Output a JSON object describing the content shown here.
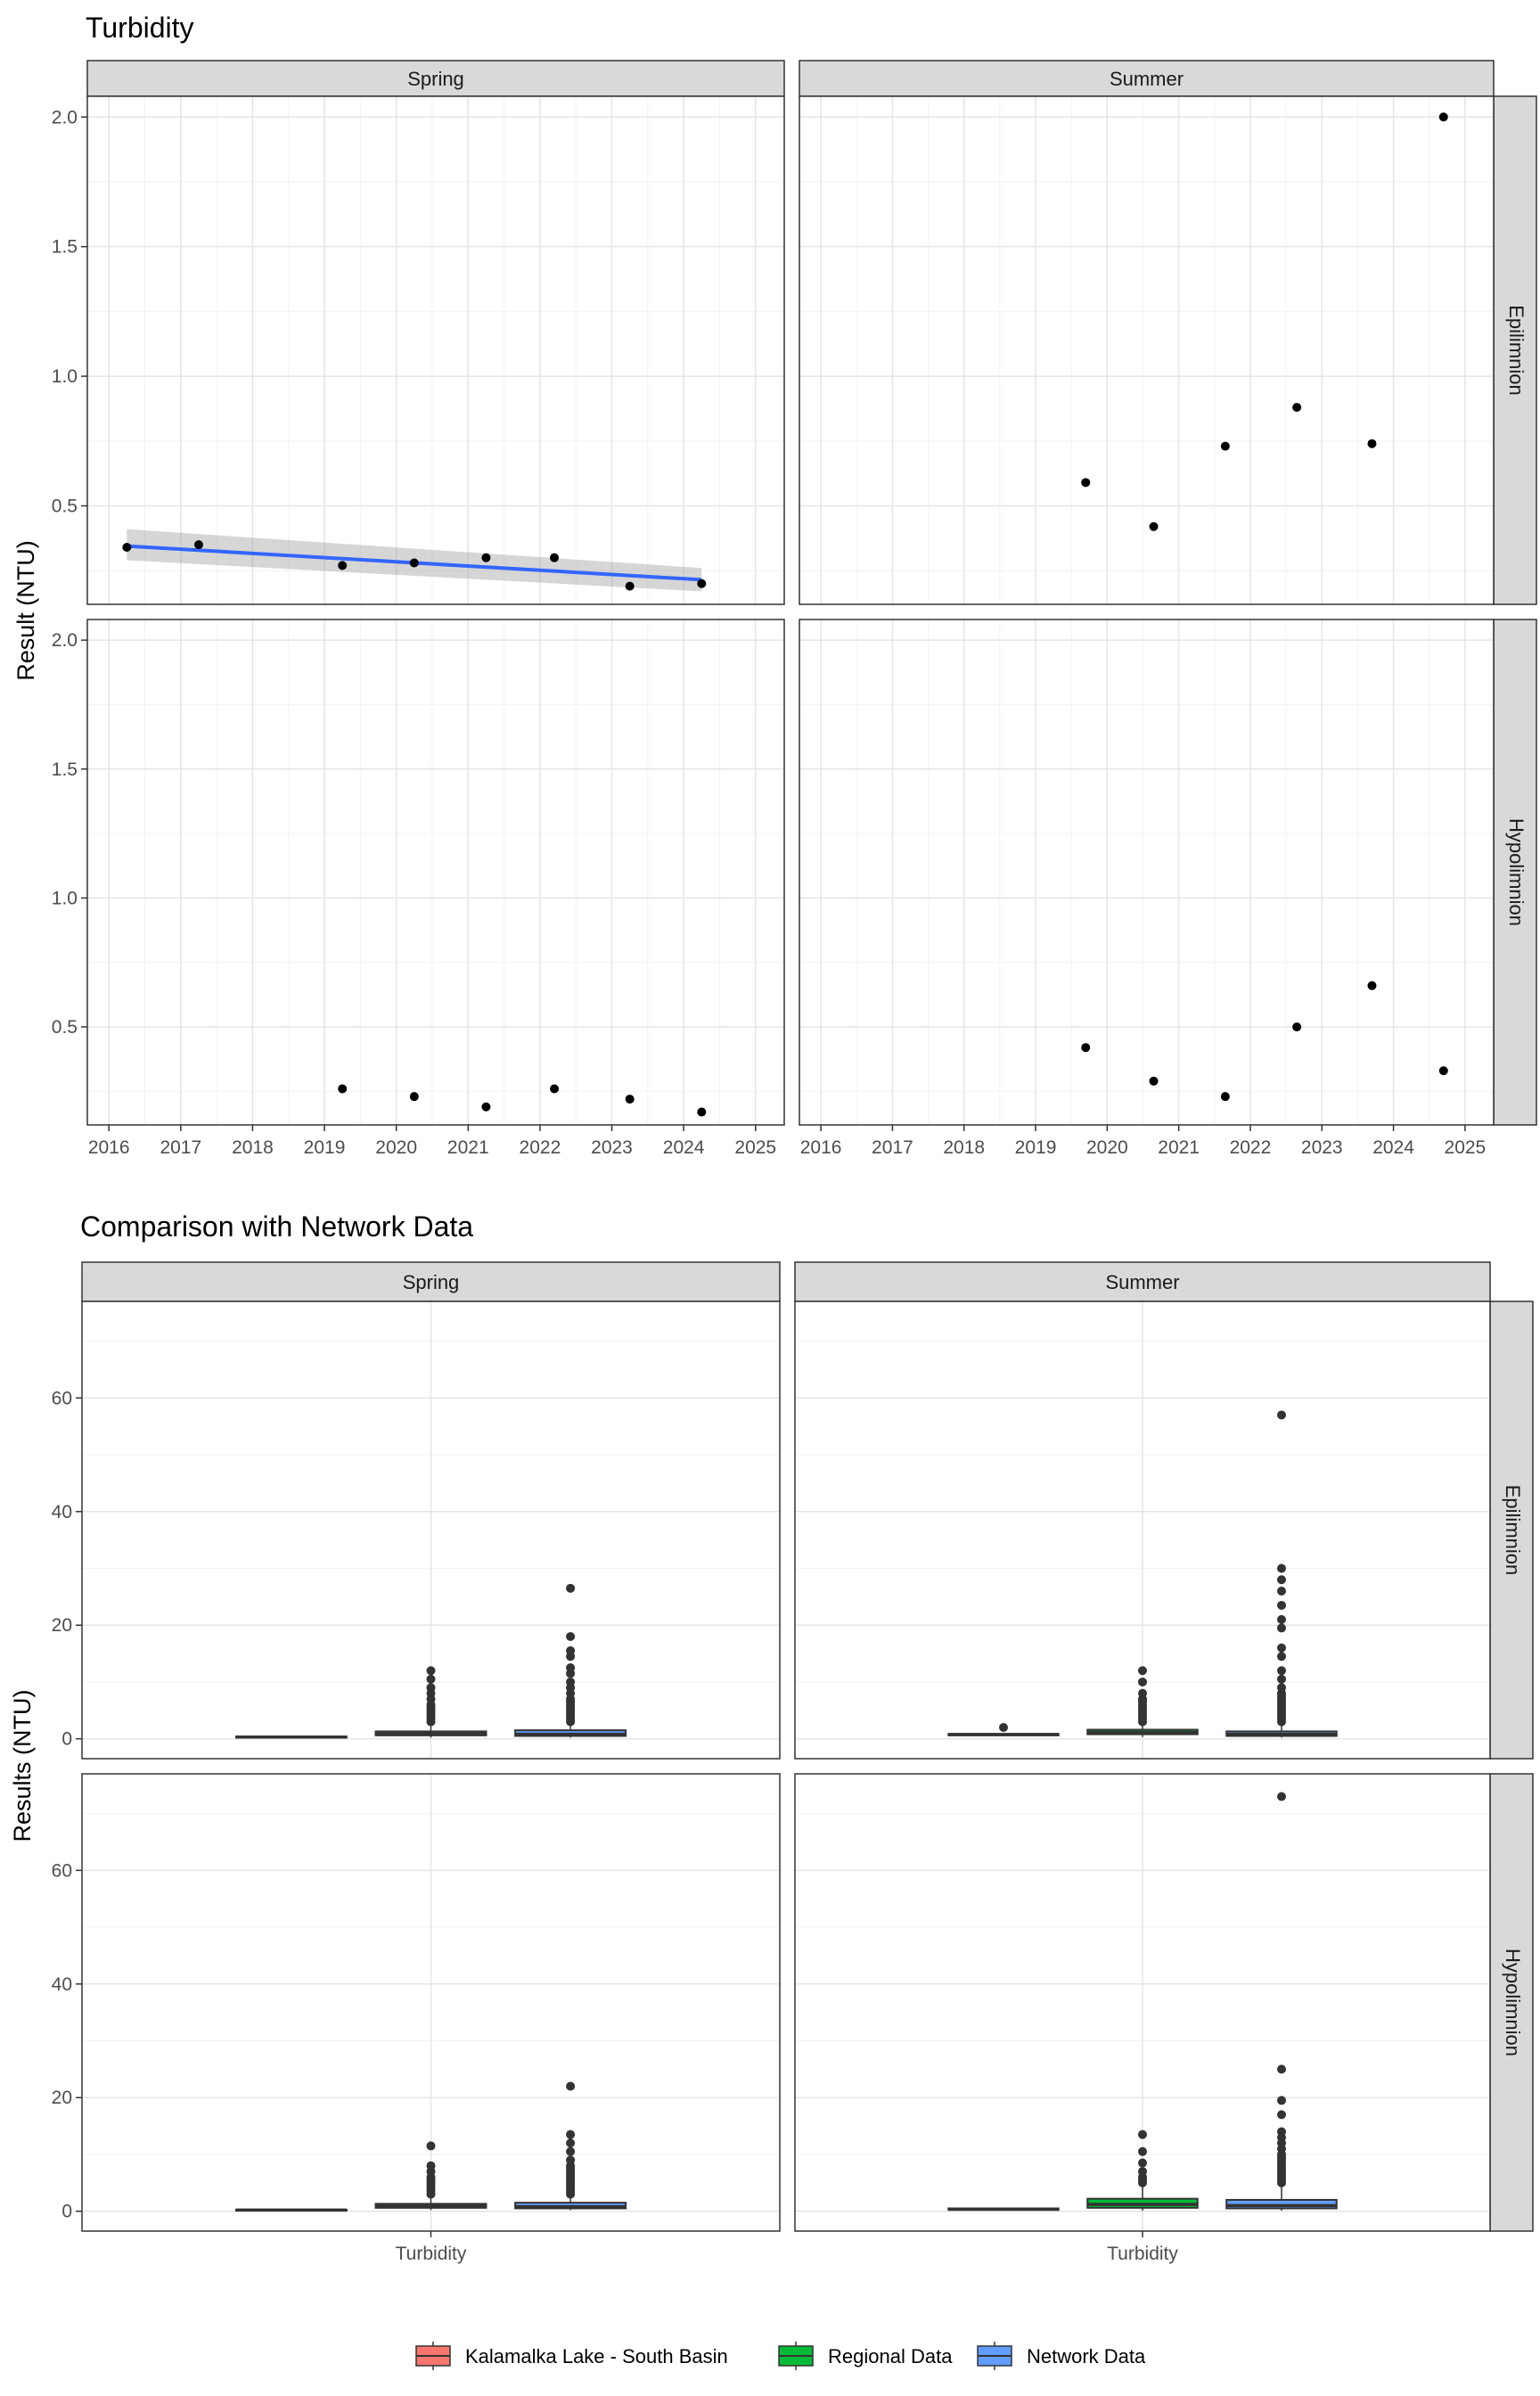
{
  "chart_data": [
    {
      "type": "scatter",
      "title": "Turbidity",
      "ylabel": "Result (NTU)",
      "xlabel": "",
      "facet_cols": [
        "Spring",
        "Summer"
      ],
      "facet_rows": [
        "Epilimnion",
        "Hypolimnion"
      ],
      "xlim": [
        2015.7,
        2025.4
      ],
      "ylim": [
        0.12,
        2.08
      ],
      "x_ticks": [
        "2016",
        "2017",
        "2018",
        "2019",
        "2020",
        "2021",
        "2022",
        "2023",
        "2024",
        "2025"
      ],
      "y_ticks": [
        "0.5",
        "1.0",
        "1.5",
        "2.0"
      ],
      "grid": true,
      "panels": [
        {
          "col": "Spring",
          "row": "Epilimnion",
          "x": [
            2016.25,
            2017.25,
            2019.25,
            2020.25,
            2021.25,
            2022.2,
            2023.25,
            2024.25
          ],
          "y": [
            0.34,
            0.35,
            0.27,
            0.28,
            0.3,
            0.3,
            0.19,
            0.2
          ],
          "trend": {
            "x": [
              2016.25,
              2024.25
            ],
            "y": [
              0.345,
              0.215
            ],
            "ci_upper": [
              0.41,
              0.26
            ],
            "ci_lower": [
              0.29,
              0.17
            ],
            "color": "#3366FF"
          }
        },
        {
          "col": "Summer",
          "row": "Epilimnion",
          "x": [
            2019.7,
            2020.65,
            2021.65,
            2022.65,
            2023.7,
            2024.7
          ],
          "y": [
            0.59,
            0.42,
            0.73,
            0.88,
            0.74,
            2.0
          ]
        },
        {
          "col": "Spring",
          "row": "Hypolimnion",
          "x": [
            2019.25,
            2020.25,
            2021.25,
            2022.2,
            2023.25,
            2024.25
          ],
          "y": [
            0.26,
            0.23,
            0.19,
            0.26,
            0.22,
            0.17
          ]
        },
        {
          "col": "Summer",
          "row": "Hypolimnion",
          "x": [
            2019.7,
            2020.65,
            2021.65,
            2022.65,
            2023.7,
            2024.7
          ],
          "y": [
            0.42,
            0.29,
            0.23,
            0.5,
            0.66,
            0.33
          ]
        }
      ]
    },
    {
      "type": "box",
      "title": "Comparison with Network Data",
      "ylabel": "Results (NTU)",
      "xlabel": "",
      "category": "Turbidity",
      "facet_cols": [
        "Spring",
        "Summer"
      ],
      "facet_rows": [
        "Epilimnion",
        "Hypolimnion"
      ],
      "ylim": [
        -3.5,
        77
      ],
      "y_ticks": [
        "0",
        "20",
        "40",
        "60"
      ],
      "grid": true,
      "legend": [
        {
          "name": "Kalamalka Lake - South Basin",
          "color": "#F8766D"
        },
        {
          "name": "Regional Data",
          "color": "#00BA38"
        },
        {
          "name": "Network Data",
          "color": "#619CFF"
        }
      ],
      "panels": [
        {
          "col": "Spring",
          "row": "Epilimnion",
          "boxes": [
            {
              "series": "Kalamalka Lake - South Basin",
              "min": 0.1,
              "q1": 0.2,
              "median": 0.3,
              "q3": 0.4,
              "max": 0.5,
              "outliers": []
            },
            {
              "series": "Regional Data",
              "min": 0.2,
              "q1": 0.6,
              "median": 0.9,
              "q3": 1.3,
              "max": 2.8,
              "outliers": [
                3,
                3.5,
                4,
                4.5,
                5,
                5.5,
                6,
                7,
                8,
                9,
                10.5,
                12
              ]
            },
            {
              "series": "Network Data",
              "min": 0.2,
              "q1": 0.5,
              "median": 0.8,
              "q3": 1.5,
              "max": 2.9,
              "outliers": [
                3,
                3.5,
                4,
                4.5,
                5,
                5.5,
                6,
                6.5,
                7,
                8,
                9,
                10,
                11.5,
                12.5,
                14.5,
                15.5,
                18,
                26.5
              ]
            }
          ]
        },
        {
          "col": "Summer",
          "row": "Epilimnion",
          "boxes": [
            {
              "series": "Kalamalka Lake - South Basin",
              "min": 0.5,
              "q1": 0.6,
              "median": 0.75,
              "q3": 0.85,
              "max": 0.9,
              "outliers": [
                2.0
              ]
            },
            {
              "series": "Regional Data",
              "min": 0.3,
              "q1": 0.8,
              "median": 1.1,
              "q3": 1.6,
              "max": 2.8,
              "outliers": [
                3,
                3.5,
                4,
                4.5,
                5,
                5.5,
                6,
                6.5,
                7,
                8,
                10,
                12
              ]
            },
            {
              "series": "Network Data",
              "min": 0.2,
              "q1": 0.5,
              "median": 0.8,
              "q3": 1.3,
              "max": 2.5,
              "outliers": [
                3,
                3.5,
                4,
                4.5,
                5,
                5.5,
                6,
                6.5,
                7,
                7.5,
                8,
                9,
                10.5,
                12,
                14.5,
                16,
                19.5,
                21,
                23.5,
                26,
                28,
                30,
                57
              ]
            }
          ]
        },
        {
          "col": "Spring",
          "row": "Hypolimnion",
          "boxes": [
            {
              "series": "Kalamalka Lake - South Basin",
              "min": 0.1,
              "q1": 0.15,
              "median": 0.2,
              "q3": 0.25,
              "max": 0.3,
              "outliers": []
            },
            {
              "series": "Regional Data",
              "min": 0.2,
              "q1": 0.6,
              "median": 0.9,
              "q3": 1.3,
              "max": 2.8,
              "outliers": [
                3,
                3.5,
                4,
                4.5,
                5,
                5.5,
                6,
                7,
                8,
                11.5
              ]
            },
            {
              "series": "Network Data",
              "min": 0.2,
              "q1": 0.5,
              "median": 0.8,
              "q3": 1.5,
              "max": 2.9,
              "outliers": [
                3,
                3.5,
                4,
                4.5,
                5,
                5.5,
                6,
                6.5,
                7,
                7.5,
                8,
                9,
                10.5,
                12,
                13.5,
                22
              ]
            }
          ]
        },
        {
          "col": "Summer",
          "row": "Hypolimnion",
          "boxes": [
            {
              "series": "Kalamalka Lake - South Basin",
              "min": 0.2,
              "q1": 0.25,
              "median": 0.35,
              "q3": 0.5,
              "max": 0.66,
              "outliers": []
            },
            {
              "series": "Regional Data",
              "min": 0.1,
              "q1": 0.6,
              "median": 1.2,
              "q3": 2.2,
              "max": 4.5,
              "outliers": [
                5,
                5.5,
                6,
                7,
                8.5,
                10.5,
                13.5
              ]
            },
            {
              "series": "Network Data",
              "min": 0.1,
              "q1": 0.5,
              "median": 1.0,
              "q3": 2.0,
              "max": 4.5,
              "outliers": [
                5,
                5.5,
                6,
                6.5,
                7,
                7.5,
                8,
                8.5,
                9,
                9.5,
                10,
                11,
                12,
                13,
                14,
                17,
                19.5,
                25,
                73
              ]
            }
          ]
        }
      ]
    }
  ]
}
